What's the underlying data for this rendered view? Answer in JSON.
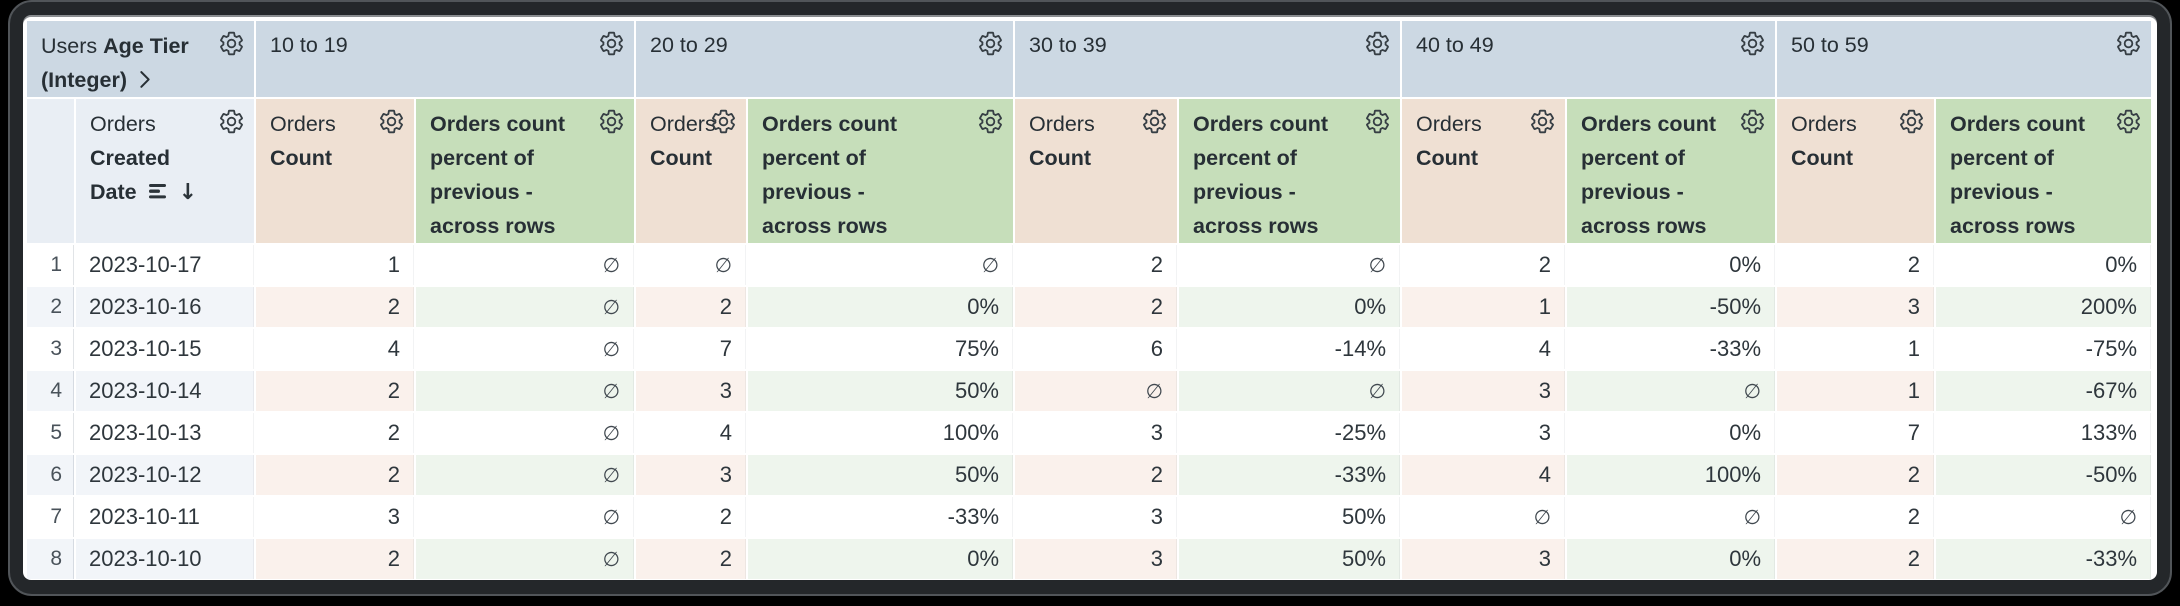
{
  "table": {
    "corner": {
      "view": "Users",
      "field": "Age Tier (Integer)"
    },
    "row_dimension": {
      "view": "Orders",
      "field": "Created Date"
    },
    "measures": [
      {
        "view": "Orders",
        "field": "Count"
      },
      {
        "label": "Orders count percent of previous - across rows"
      }
    ],
    "pivots": [
      "10 to 19",
      "20 to 29",
      "30 to 39",
      "40 to 49",
      "50 to 59"
    ],
    "null_symbol": "∅",
    "rows": [
      {
        "num": "1",
        "date": "2023-10-17",
        "values": [
          "1",
          "∅",
          "∅",
          "∅",
          "2",
          "∅",
          "2",
          "0%",
          "2",
          "0%"
        ]
      },
      {
        "num": "2",
        "date": "2023-10-16",
        "values": [
          "2",
          "∅",
          "2",
          "0%",
          "2",
          "0%",
          "1",
          "-50%",
          "3",
          "200%"
        ]
      },
      {
        "num": "3",
        "date": "2023-10-15",
        "values": [
          "4",
          "∅",
          "7",
          "75%",
          "6",
          "-14%",
          "4",
          "-33%",
          "1",
          "-75%"
        ]
      },
      {
        "num": "4",
        "date": "2023-10-14",
        "values": [
          "2",
          "∅",
          "3",
          "50%",
          "∅",
          "∅",
          "3",
          "∅",
          "1",
          "-67%"
        ]
      },
      {
        "num": "5",
        "date": "2023-10-13",
        "values": [
          "2",
          "∅",
          "4",
          "100%",
          "3",
          "-25%",
          "3",
          "0%",
          "7",
          "133%"
        ]
      },
      {
        "num": "6",
        "date": "2023-10-12",
        "values": [
          "2",
          "∅",
          "3",
          "50%",
          "2",
          "-33%",
          "4",
          "100%",
          "2",
          "-50%"
        ]
      },
      {
        "num": "7",
        "date": "2023-10-11",
        "values": [
          "3",
          "∅",
          "2",
          "-33%",
          "3",
          "50%",
          "∅",
          "∅",
          "2",
          "∅"
        ]
      },
      {
        "num": "8",
        "date": "2023-10-10",
        "values": [
          "2",
          "∅",
          "2",
          "0%",
          "3",
          "50%",
          "3",
          "0%",
          "2",
          "-33%"
        ]
      }
    ]
  },
  "colors": {
    "pivot_header_bg": "#ccd8e3",
    "dimension_header_bg": "#e9eef4",
    "count_header_bg": "#efe0d3",
    "percent_header_bg": "#c6deba",
    "stripe_blue": "#f2f5f9",
    "stripe_tan": "#faf1ec",
    "stripe_green": "#eef5ed",
    "header_text": "#272f35",
    "data_text": "#2e363c"
  }
}
